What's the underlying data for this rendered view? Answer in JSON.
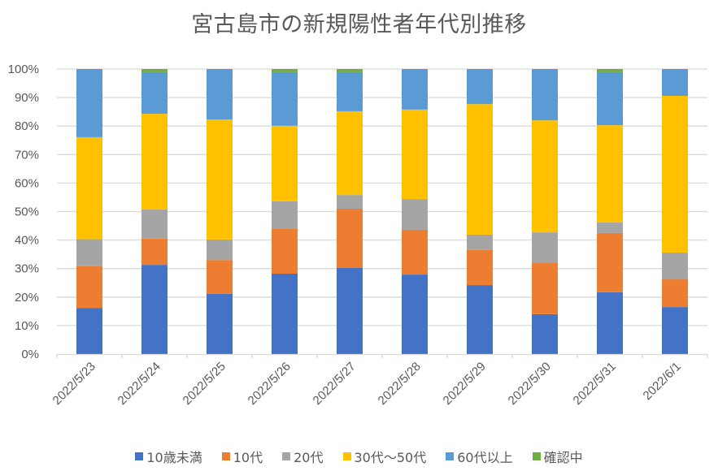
{
  "chart_data": {
    "type": "bar",
    "stacked": "percent",
    "title": "宮古島市の新規陽性者年代別推移",
    "xlabel": "",
    "ylabel": "",
    "ylim": [
      0,
      100
    ],
    "yticks": [
      "0%",
      "10%",
      "20%",
      "30%",
      "40%",
      "50%",
      "60%",
      "70%",
      "80%",
      "90%",
      "100%"
    ],
    "grid": true,
    "legend_position": "bottom",
    "categories": [
      "2022/5/23",
      "2022/5/24",
      "2022/5/25",
      "2022/5/26",
      "2022/5/27",
      "2022/5/28",
      "2022/5/29",
      "2022/5/30",
      "2022/5/31",
      "2022/6/1"
    ],
    "series": [
      {
        "name": "10歳未満",
        "color": "#4472C4",
        "values": [
          16.2,
          31.3,
          21.1,
          28.2,
          30.2,
          27.9,
          24.2,
          14.0,
          21.7,
          16.5
        ]
      },
      {
        "name": "10代",
        "color": "#ED7D31",
        "values": [
          14.6,
          9.2,
          11.9,
          15.7,
          20.8,
          15.7,
          12.3,
          17.9,
          20.8,
          9.7
        ]
      },
      {
        "name": "20代",
        "color": "#A5A5A5",
        "values": [
          9.5,
          10.2,
          7.2,
          9.7,
          4.8,
          10.8,
          5.4,
          10.8,
          3.7,
          9.4
        ]
      },
      {
        "name": "30代～50代",
        "color": "#FFC000",
        "values": [
          35.8,
          33.6,
          42.1,
          26.5,
          29.4,
          31.4,
          45.8,
          39.3,
          34.1,
          55.0
        ]
      },
      {
        "name": "60代以上",
        "color": "#5B9BD5",
        "values": [
          23.9,
          14.6,
          17.7,
          18.8,
          13.7,
          14.2,
          12.3,
          18.0,
          18.6,
          9.4
        ]
      },
      {
        "name": "確認中",
        "color": "#70AD47",
        "values": [
          0,
          1.1,
          0,
          1.1,
          1.1,
          0,
          0,
          0,
          1.1,
          0
        ]
      }
    ]
  }
}
